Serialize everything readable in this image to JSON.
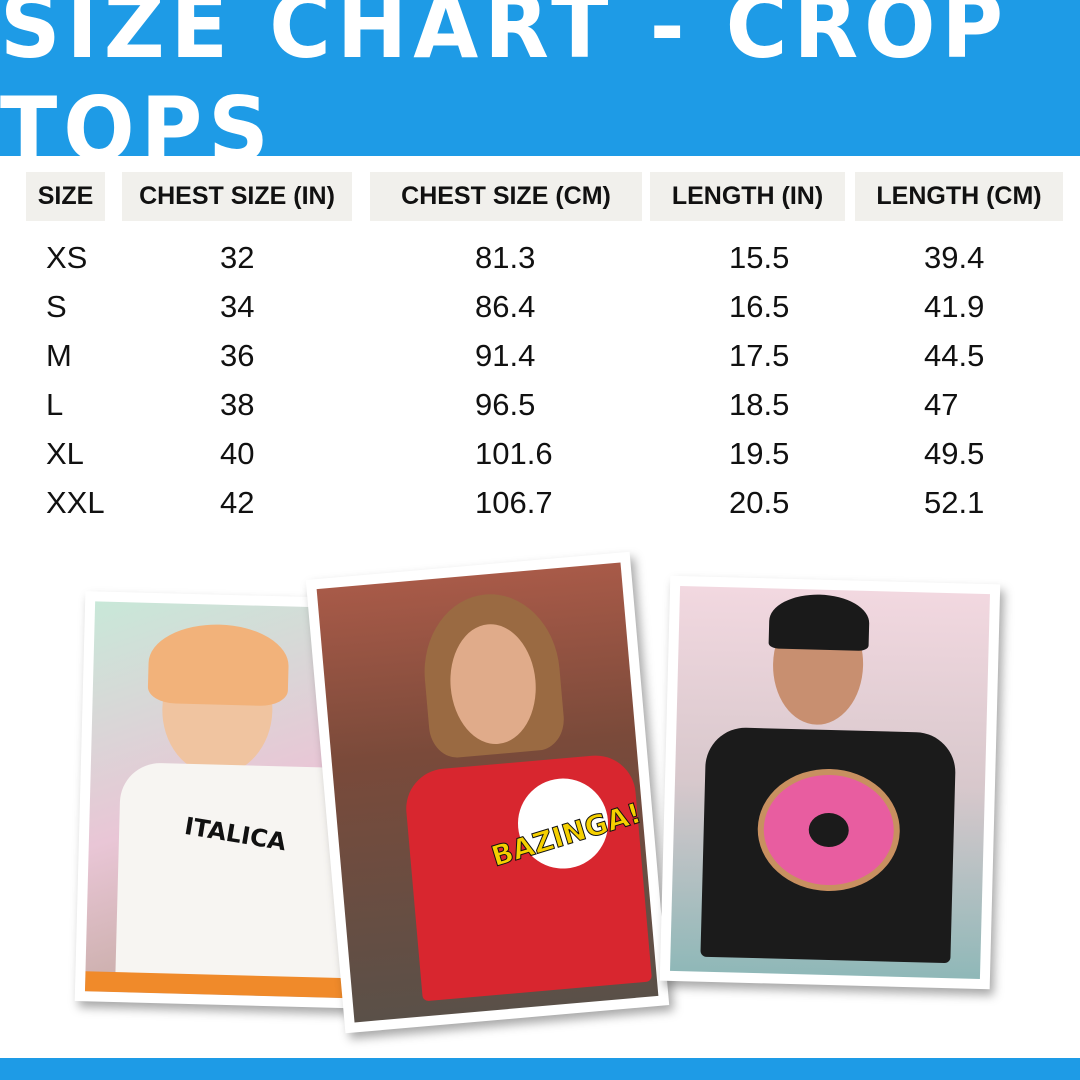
{
  "title": "SIZE CHART - CROP TOPS",
  "colors": {
    "accent": "#1e9be6",
    "header_cell": "#f1f0ec"
  },
  "table": {
    "headers": [
      "SIZE",
      "CHEST SIZE (IN)",
      "CHEST SIZE (CM)",
      "LENGTH (IN)",
      "LENGTH (CM)"
    ],
    "rows": [
      [
        "XS",
        "32",
        "81.3",
        "15.5",
        "39.4"
      ],
      [
        "S",
        "34",
        "86.4",
        "16.5",
        "41.9"
      ],
      [
        "M",
        "36",
        "91.4",
        "17.5",
        "44.5"
      ],
      [
        "L",
        "38",
        "96.5",
        "18.5",
        "47"
      ],
      [
        "XL",
        "40",
        "101.6",
        "19.5",
        "49.5"
      ],
      [
        "XXL",
        "42",
        "106.7",
        "20.5",
        "52.1"
      ]
    ]
  },
  "photos": [
    {
      "shirt_print": "ITALICA",
      "shirt_color": "#f7f5f2"
    },
    {
      "shirt_print": "BAZINGA!",
      "shirt_color": "#d8262f"
    },
    {
      "shirt_print": "",
      "shirt_color": "#1b1b1b"
    }
  ]
}
